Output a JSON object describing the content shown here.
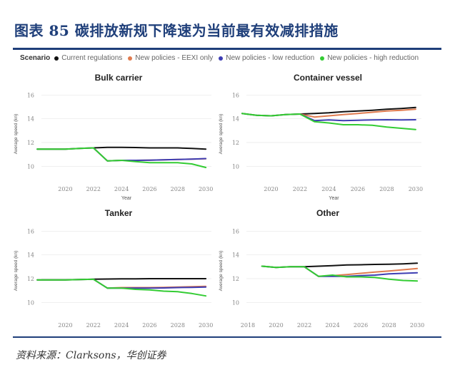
{
  "figure": {
    "title": "图表  85    碳排放新规下降速为当前最有效减排措施",
    "source": "资料来源：Clarksons，华创证券"
  },
  "legend": {
    "title": "Scenario",
    "items": [
      {
        "label": "Current regulations",
        "color": "#111111"
      },
      {
        "label": "New policies - EEXI only",
        "color": "#e07b4f"
      },
      {
        "label": "New policies - low reduction",
        "color": "#3d3db3"
      },
      {
        "label": "New policies - high reduction",
        "color": "#33cc33"
      }
    ]
  },
  "chart_data": [
    {
      "type": "line",
      "title": "Bulk carrier",
      "xlabel": "Year",
      "ylabel": "Average speed (kn)",
      "xlim": [
        2018.3,
        2030.4
      ],
      "ylim": [
        9,
        16.5
      ],
      "xticks": [
        "2020",
        "2022",
        "2024",
        "2026",
        "2028",
        "2030"
      ],
      "yticks": [
        "10",
        "12",
        "14",
        "16"
      ],
      "series": [
        {
          "name": "Current regulations",
          "x": [
            2018,
            2019,
            2020,
            2021,
            2022,
            2023,
            2024,
            2025,
            2026,
            2027,
            2028,
            2029,
            2030
          ],
          "y": [
            11.45,
            11.45,
            11.45,
            11.5,
            11.55,
            11.6,
            11.6,
            11.58,
            11.55,
            11.55,
            11.55,
            11.5,
            11.45
          ]
        },
        {
          "name": "New policies - EEXI only",
          "x": [
            2022,
            2023,
            2024,
            2025,
            2026,
            2027,
            2028,
            2029,
            2030
          ],
          "y": [
            11.55,
            10.45,
            10.5,
            10.5,
            10.52,
            10.55,
            10.58,
            10.6,
            10.63
          ]
        },
        {
          "name": "New policies - low reduction",
          "x": [
            2022,
            2023,
            2024,
            2025,
            2026,
            2027,
            2028,
            2029,
            2030
          ],
          "y": [
            11.55,
            10.45,
            10.5,
            10.5,
            10.52,
            10.55,
            10.58,
            10.6,
            10.65
          ]
        },
        {
          "name": "New policies - high reduction",
          "x": [
            2018,
            2019,
            2020,
            2021,
            2022,
            2023,
            2024,
            2025,
            2026,
            2027,
            2028,
            2029,
            2030
          ],
          "y": [
            11.45,
            11.45,
            11.45,
            11.5,
            11.55,
            10.45,
            10.5,
            10.4,
            10.3,
            10.3,
            10.3,
            10.2,
            9.9
          ]
        }
      ]
    },
    {
      "type": "line",
      "title": "Container vessel",
      "xlabel": "Year",
      "ylabel": "Average speed (kn)",
      "xlim": [
        2018.3,
        2030.4
      ],
      "ylim": [
        9,
        16.5
      ],
      "xticks": [
        "2020",
        "2022",
        "2024",
        "2026",
        "2028",
        "2030"
      ],
      "yticks": [
        "10",
        "12",
        "14",
        "16"
      ],
      "series": [
        {
          "name": "Current regulations",
          "x": [
            2018,
            2019,
            2020,
            2021,
            2022,
            2023,
            2024,
            2025,
            2026,
            2027,
            2028,
            2029,
            2030
          ],
          "y": [
            14.45,
            14.3,
            14.25,
            14.35,
            14.4,
            14.45,
            14.5,
            14.6,
            14.65,
            14.72,
            14.8,
            14.87,
            14.95
          ]
        },
        {
          "name": "New policies - EEXI only",
          "x": [
            2022,
            2023,
            2024,
            2025,
            2026,
            2027,
            2028,
            2029,
            2030
          ],
          "y": [
            14.4,
            14.15,
            14.25,
            14.35,
            14.45,
            14.55,
            14.65,
            14.72,
            14.8
          ]
        },
        {
          "name": "New policies - low reduction",
          "x": [
            2022,
            2023,
            2024,
            2025,
            2026,
            2027,
            2028,
            2029,
            2030
          ],
          "y": [
            14.4,
            13.85,
            13.9,
            13.85,
            13.88,
            13.9,
            13.92,
            13.9,
            13.92
          ]
        },
        {
          "name": "New policies - high reduction",
          "x": [
            2018,
            2019,
            2020,
            2021,
            2022,
            2023,
            2024,
            2025,
            2026,
            2027,
            2028,
            2029,
            2030
          ],
          "y": [
            14.45,
            14.3,
            14.25,
            14.35,
            14.4,
            13.75,
            13.65,
            13.5,
            13.5,
            13.45,
            13.3,
            13.2,
            13.1
          ]
        }
      ]
    },
    {
      "type": "line",
      "title": "Tanker",
      "xlabel": "",
      "ylabel": "Average speed (kn)",
      "xlim": [
        2018.3,
        2030.4
      ],
      "ylim": [
        9,
        16.5
      ],
      "xticks": [
        "2020",
        "2022",
        "2024",
        "2026",
        "2028",
        "2030"
      ],
      "yticks": [
        "10",
        "12",
        "14",
        "16"
      ],
      "series": [
        {
          "name": "Current regulations",
          "x": [
            2018,
            2019,
            2020,
            2021,
            2022,
            2023,
            2024,
            2025,
            2026,
            2027,
            2028,
            2029,
            2030
          ],
          "y": [
            11.9,
            11.9,
            11.9,
            11.92,
            11.95,
            11.97,
            11.98,
            11.99,
            12.0,
            12.0,
            12.0,
            12.0,
            12.0
          ]
        },
        {
          "name": "New policies - EEXI only",
          "x": [
            2022,
            2023,
            2024,
            2025,
            2026,
            2027,
            2028,
            2029,
            2030
          ],
          "y": [
            11.95,
            11.2,
            11.25,
            11.25,
            11.25,
            11.27,
            11.3,
            11.32,
            11.35
          ]
        },
        {
          "name": "New policies - low reduction",
          "x": [
            2022,
            2023,
            2024,
            2025,
            2026,
            2027,
            2028,
            2029,
            2030
          ],
          "y": [
            11.95,
            11.2,
            11.2,
            11.2,
            11.2,
            11.22,
            11.25,
            11.27,
            11.3
          ]
        },
        {
          "name": "New policies - high reduction",
          "x": [
            2018,
            2019,
            2020,
            2021,
            2022,
            2023,
            2024,
            2025,
            2026,
            2027,
            2028,
            2029,
            2030
          ],
          "y": [
            11.9,
            11.9,
            11.9,
            11.92,
            11.95,
            11.2,
            11.2,
            11.1,
            11.05,
            10.95,
            10.9,
            10.75,
            10.55
          ]
        }
      ]
    },
    {
      "type": "line",
      "title": "Other",
      "xlabel": "",
      "ylabel": "Average speed (kn)",
      "xlim": [
        2017.9,
        2030.3
      ],
      "ylim": [
        9,
        16.5
      ],
      "xticks": [
        "2018",
        "2020",
        "2022",
        "2024",
        "2026",
        "2028",
        "2030"
      ],
      "yticks": [
        "10",
        "12",
        "14",
        "16"
      ],
      "series": [
        {
          "name": "Current regulations",
          "x": [
            2019,
            2020,
            2021,
            2022,
            2023,
            2024,
            2025,
            2026,
            2027,
            2028,
            2029,
            2030
          ],
          "y": [
            13.05,
            12.95,
            13.0,
            13.0,
            13.05,
            13.1,
            13.15,
            13.17,
            13.2,
            13.22,
            13.25,
            13.3
          ]
        },
        {
          "name": "New policies - EEXI only",
          "x": [
            2022,
            2023,
            2024,
            2025,
            2026,
            2027,
            2028,
            2029,
            2030
          ],
          "y": [
            13.0,
            12.2,
            12.25,
            12.35,
            12.45,
            12.55,
            12.65,
            12.75,
            12.85
          ]
        },
        {
          "name": "New policies - low reduction",
          "x": [
            2022,
            2023,
            2024,
            2025,
            2026,
            2027,
            2028,
            2029,
            2030
          ],
          "y": [
            13.0,
            12.2,
            12.2,
            12.2,
            12.25,
            12.3,
            12.4,
            12.45,
            12.5
          ]
        },
        {
          "name": "New policies - high reduction",
          "x": [
            2019,
            2020,
            2021,
            2022,
            2023,
            2024,
            2025,
            2026,
            2027,
            2028,
            2029,
            2030
          ],
          "y": [
            13.05,
            12.95,
            13.0,
            13.0,
            12.2,
            12.3,
            12.15,
            12.15,
            12.1,
            11.95,
            11.85,
            11.8
          ]
        }
      ]
    }
  ]
}
